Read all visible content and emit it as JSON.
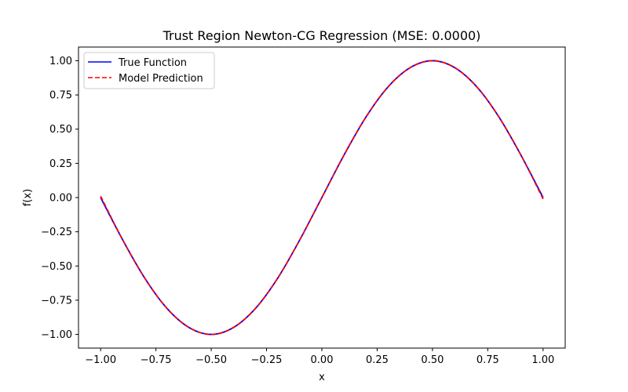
{
  "chart_data": {
    "type": "line",
    "title": "Trust Region Newton-CG Regression (MSE: 0.0000)",
    "xlabel": "x",
    "ylabel": "f(x)",
    "xlim": [
      -1.1,
      1.1
    ],
    "ylim": [
      -1.1,
      1.1
    ],
    "xticks": [
      -1.0,
      -0.75,
      -0.5,
      -0.25,
      0.0,
      0.25,
      0.5,
      0.75,
      1.0
    ],
    "xtick_labels": [
      "−1.00",
      "−0.75",
      "−0.50",
      "−0.25",
      "0.00",
      "0.25",
      "0.50",
      "0.75",
      "1.00"
    ],
    "yticks": [
      -1.0,
      -0.75,
      -0.5,
      -0.25,
      0.0,
      0.25,
      0.5,
      0.75,
      1.0
    ],
    "ytick_labels": [
      "−1.00",
      "−0.75",
      "−0.50",
      "−0.25",
      "0.00",
      "0.25",
      "0.50",
      "0.75",
      "1.00"
    ],
    "grid": false,
    "legend_position": "upper left",
    "series": [
      {
        "name": "True Function",
        "color": "#0000ff",
        "style": "solid",
        "x": [
          -1.0,
          -0.9,
          -0.8,
          -0.7,
          -0.6,
          -0.5,
          -0.4,
          -0.3,
          -0.2,
          -0.1,
          0.0,
          0.1,
          0.2,
          0.3,
          0.4,
          0.5,
          0.6,
          0.7,
          0.8,
          0.9,
          1.0
        ],
        "y": [
          0.0,
          -0.31,
          -0.59,
          -0.81,
          -0.95,
          -1.0,
          -0.95,
          -0.81,
          -0.59,
          -0.31,
          0.0,
          0.31,
          0.59,
          0.81,
          0.95,
          1.0,
          0.95,
          0.81,
          0.59,
          0.31,
          0.0
        ]
      },
      {
        "name": "Model Prediction",
        "color": "#ff0000",
        "style": "dashed",
        "x": [
          -1.0,
          -0.9,
          -0.8,
          -0.7,
          -0.6,
          -0.5,
          -0.4,
          -0.3,
          -0.2,
          -0.1,
          0.0,
          0.1,
          0.2,
          0.3,
          0.4,
          0.5,
          0.6,
          0.7,
          0.8,
          0.9,
          1.0
        ],
        "y": [
          0.01,
          -0.31,
          -0.59,
          -0.81,
          -0.95,
          -1.0,
          -0.95,
          -0.81,
          -0.59,
          -0.31,
          0.0,
          0.31,
          0.59,
          0.81,
          0.95,
          1.0,
          0.95,
          0.81,
          0.59,
          0.31,
          -0.01
        ]
      }
    ]
  }
}
